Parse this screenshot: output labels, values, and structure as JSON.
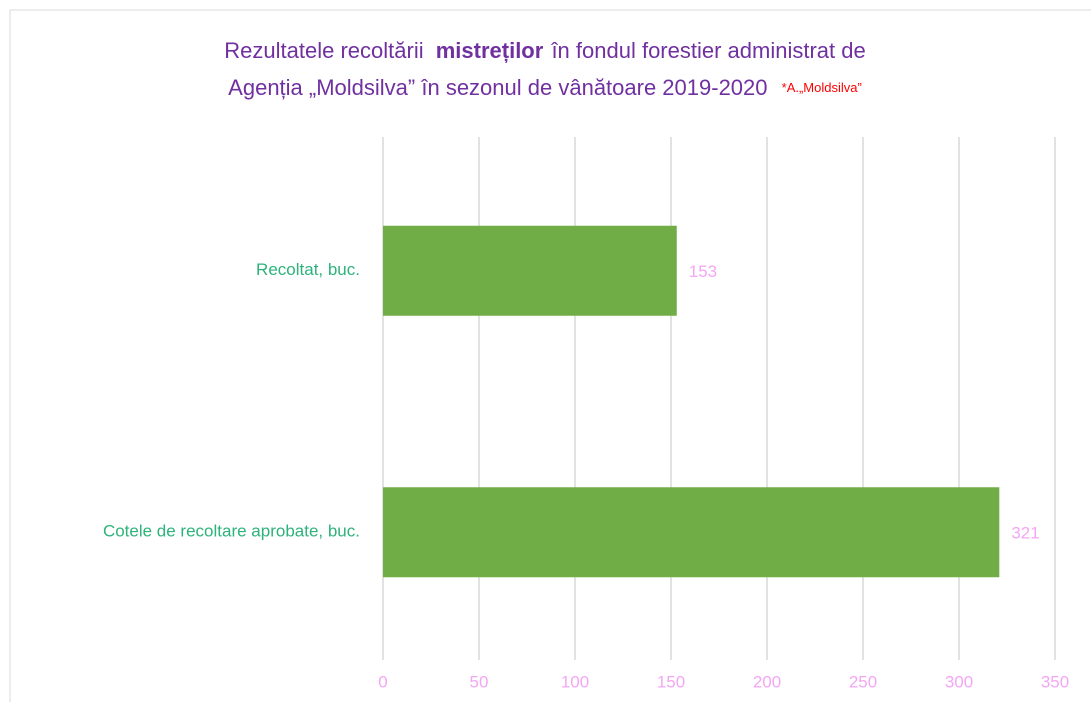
{
  "chart_data": {
    "type": "bar",
    "orientation": "horizontal",
    "title": [
      "Rezultatele recoltării",
      "mistreților",
      "în fondul forestier administrat de",
      "Agenția „Moldsilva” în sezonul de vânătoare 2019-2020"
    ],
    "source": "*A.„Moldsilva”",
    "categories": [
      "Recoltat, buc.",
      "Cotele de recoltare aprobate, buc."
    ],
    "values": [
      153,
      321
    ],
    "color": "#70ad47",
    "xlim": [
      0,
      350
    ],
    "xticks": [
      0,
      50,
      100,
      150,
      200,
      250,
      300,
      350
    ],
    "grid": true
  }
}
